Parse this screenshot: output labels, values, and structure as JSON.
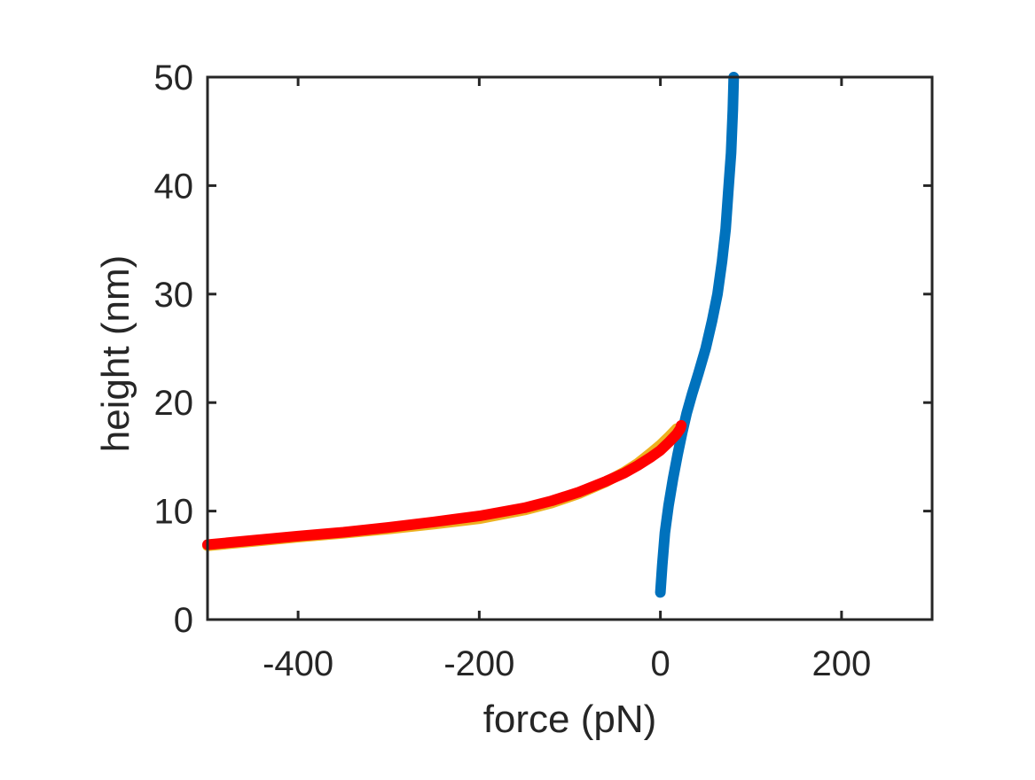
{
  "chart_data": {
    "type": "line",
    "title": "",
    "xlabel": "force (pN)",
    "ylabel": "height (nm)",
    "xlim": [
      -500,
      300
    ],
    "ylim": [
      0,
      50
    ],
    "xticks": [
      -400,
      -200,
      0,
      200
    ],
    "yticks": [
      0,
      10,
      20,
      30,
      40,
      50
    ],
    "grid": false,
    "legend": "none",
    "box": true,
    "series": [
      {
        "color": "#0072BD",
        "x": [
          0,
          2,
          5,
          9,
          14,
          19,
          24,
          29,
          35,
          42,
          50,
          57,
          63,
          68,
          72,
          75,
          78,
          80,
          81
        ],
        "y": [
          2.5,
          5,
          8,
          10.5,
          13,
          15.2,
          17.2,
          19,
          20.8,
          22.7,
          25,
          27.5,
          30,
          33,
          36,
          39.5,
          43,
          47,
          50
        ]
      },
      {
        "color": "#EDB120",
        "x": [
          -500,
          -450,
          -400,
          -350,
          -300,
          -250,
          -200,
          -150,
          -120,
          -90,
          -60,
          -40,
          -25,
          -10,
          0,
          10,
          18
        ],
        "y": [
          6.8,
          7.2,
          7.6,
          7.95,
          8.35,
          8.8,
          9.3,
          10.1,
          10.75,
          11.6,
          12.7,
          13.6,
          14.4,
          15.4,
          16.1,
          16.9,
          17.6
        ]
      },
      {
        "color": "#FF0000",
        "x": [
          -500,
          -450,
          -400,
          -350,
          -300,
          -250,
          -200,
          -150,
          -120,
          -90,
          -60,
          -40,
          -25,
          -10,
          0,
          10,
          18,
          22,
          23
        ],
        "y": [
          6.9,
          7.3,
          7.7,
          8.05,
          8.5,
          9,
          9.55,
          10.3,
          10.95,
          11.75,
          12.75,
          13.5,
          14.2,
          15,
          15.6,
          16.4,
          17.1,
          17.6,
          17.9
        ]
      }
    ]
  }
}
